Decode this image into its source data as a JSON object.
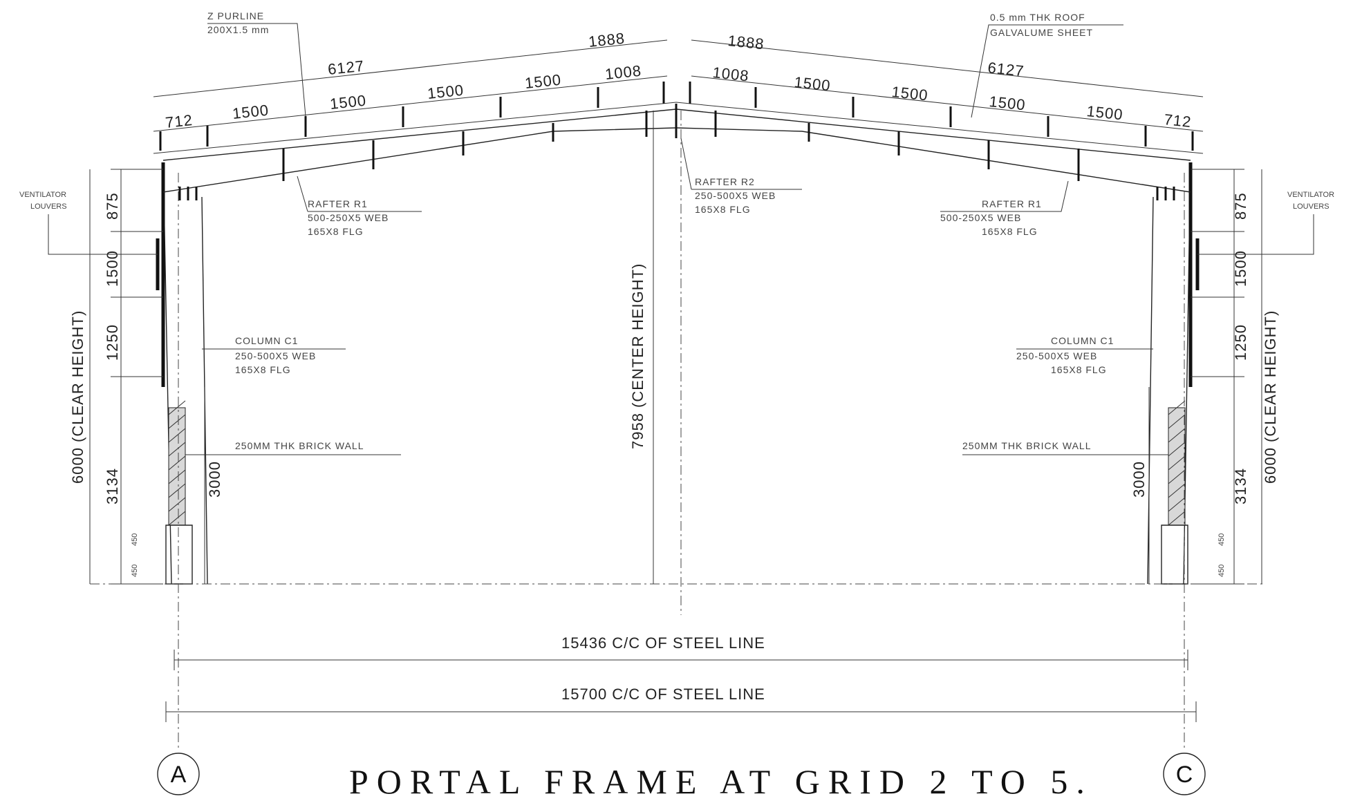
{
  "title": "PORTAL FRAME AT GRID  2 TO 5.",
  "grids": {
    "left": "A",
    "right": "C"
  },
  "overall": {
    "inner_span": "15436 C/C OF STEEL LINE",
    "outer_span": "15700 C/C OF STEEL LINE",
    "center_height": "7958 (CENTER HEIGHT)"
  },
  "roof_left": {
    "total": "6127",
    "segments": [
      "712",
      "1500",
      "1500",
      "1500",
      "1500",
      "1008"
    ],
    "apex": "1888"
  },
  "roof_right": {
    "total": "6127",
    "segments": [
      "1008",
      "1500",
      "1500",
      "1500",
      "1500",
      "712"
    ],
    "apex": "1888"
  },
  "left_elev": {
    "clear_height": "6000 (CLEAR HEIGHT)",
    "dims": [
      "875",
      "1500",
      "1250",
      "3134"
    ],
    "wall_height": "3000",
    "base": [
      "450",
      "450"
    ]
  },
  "right_elev": {
    "clear_height": "6000 (CLEAR HEIGHT)",
    "dims": [
      "875",
      "1500",
      "1250",
      "3134"
    ],
    "wall_height": "3000",
    "base": [
      "450",
      "450"
    ]
  },
  "notes": {
    "purlin": [
      "Z PURLINE",
      "200X1.5 mm"
    ],
    "sheet": [
      "0.5 mm THK ROOF",
      "GALVALUME SHEET"
    ],
    "rafter_r1": [
      "RAFTER R1",
      "500-250X5 WEB",
      "165X8 FLG"
    ],
    "rafter_r2": [
      "RAFTER R2",
      "250-500X5 WEB",
      "165X8 FLG"
    ],
    "column_c1": [
      "COLUMN C1",
      "250-500X5 WEB",
      "165X8 FLG"
    ],
    "brick_wall": "250MM THK BRICK WALL",
    "ventilator": [
      "VENTILATOR",
      "LOUVERS"
    ]
  },
  "colors": {
    "line": "#222222",
    "background": "#ffffff"
  }
}
